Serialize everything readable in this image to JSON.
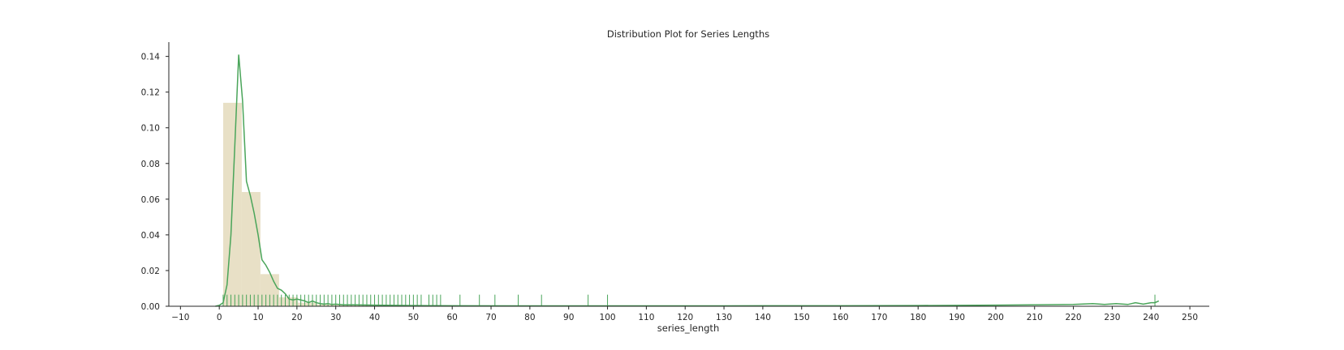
{
  "chart_data": {
    "type": "histogram",
    "title": "Distribution Plot for Series Lengths",
    "xlabel": "series_length",
    "ylabel": "",
    "xlim": [
      -13,
      255
    ],
    "ylim": [
      0,
      0.148
    ],
    "xticks": [
      -10,
      0,
      10,
      20,
      30,
      40,
      50,
      60,
      70,
      80,
      90,
      100,
      110,
      120,
      130,
      140,
      150,
      160,
      170,
      180,
      190,
      200,
      210,
      220,
      230,
      240,
      250
    ],
    "xtick_labels": [
      "−10",
      "0",
      "10",
      "20",
      "30",
      "40",
      "50",
      "60",
      "70",
      "80",
      "90",
      "100",
      "110",
      "120",
      "130",
      "140",
      "150",
      "160",
      "170",
      "180",
      "190",
      "200",
      "210",
      "220",
      "230",
      "240",
      "250"
    ],
    "yticks": [
      0,
      0.02,
      0.04,
      0.06,
      0.08,
      0.1,
      0.12,
      0.14
    ],
    "ytick_labels": [
      "0.00",
      "0.02",
      "0.04",
      "0.06",
      "0.08",
      "0.10",
      "0.12",
      "0.14"
    ],
    "histogram": {
      "bin_edges": [
        1,
        5.8,
        10.6,
        15.4,
        20.2,
        25,
        29.8,
        34.6,
        39.4,
        44.2
      ],
      "densities": [
        0.114,
        0.064,
        0.018,
        0.005,
        0.002,
        0.001,
        0.0008,
        0.0006,
        0.0004
      ],
      "color": "#e8e0c6"
    },
    "kde": {
      "x": [
        -1,
        0,
        1,
        2,
        3,
        4,
        5,
        6,
        7,
        8,
        9,
        10,
        11,
        12,
        13,
        14,
        15,
        16,
        17,
        18,
        19,
        20,
        21,
        22,
        23,
        24,
        25,
        26,
        27,
        28,
        29,
        30,
        32,
        35,
        40,
        45,
        50,
        60,
        80,
        100,
        120,
        140,
        160,
        180,
        200,
        210,
        220,
        225,
        228,
        231,
        234,
        236,
        238,
        240,
        241,
        242
      ],
      "y": [
        0,
        0.0005,
        0.002,
        0.012,
        0.04,
        0.09,
        0.141,
        0.115,
        0.07,
        0.062,
        0.052,
        0.04,
        0.026,
        0.023,
        0.019,
        0.014,
        0.01,
        0.009,
        0.007,
        0.004,
        0.0035,
        0.004,
        0.0035,
        0.003,
        0.002,
        0.003,
        0.002,
        0.0015,
        0.0012,
        0.0015,
        0.001,
        0.0012,
        0.0008,
        0.0008,
        0.0006,
        0.0005,
        0.0004,
        0.0003,
        0.0002,
        0.0002,
        0.0002,
        0.0003,
        0.0003,
        0.0004,
        0.0006,
        0.0008,
        0.001,
        0.0015,
        0.001,
        0.0015,
        0.001,
        0.002,
        0.0012,
        0.002,
        0.002,
        0.003
      ],
      "color": "#4aa55a"
    },
    "rug": {
      "values": [
        1,
        2,
        3,
        4,
        5,
        6,
        7,
        8,
        9,
        10,
        11,
        12,
        13,
        14,
        15,
        16,
        17,
        18,
        19,
        20,
        21,
        22,
        23,
        24,
        25,
        26,
        27,
        28,
        29,
        30,
        31,
        32,
        33,
        34,
        35,
        36,
        37,
        38,
        39,
        40,
        41,
        42,
        43,
        44,
        45,
        46,
        47,
        48,
        49,
        50,
        51,
        52,
        54,
        55,
        56,
        57,
        62,
        67,
        71,
        77,
        83,
        95,
        100,
        241
      ],
      "height": 0.0065,
      "color": "#4aa55a"
    }
  }
}
